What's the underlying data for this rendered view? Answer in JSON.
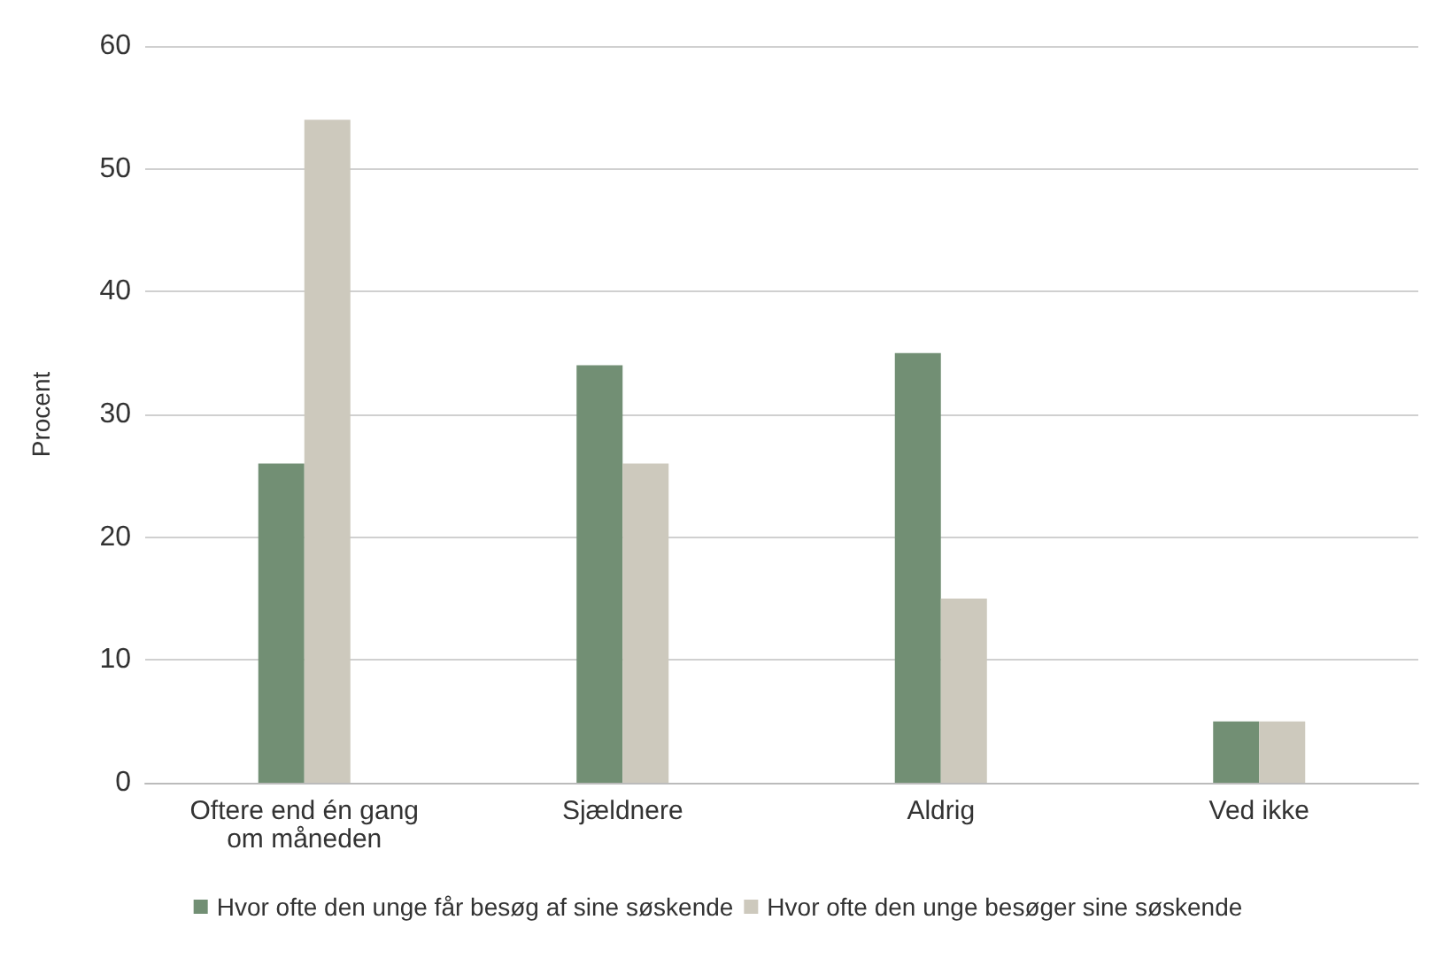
{
  "chart_data": {
    "type": "bar",
    "ylabel": "Procent",
    "categories": [
      "Oftere end én gang\nom måneden",
      "Sjældnere",
      "Aldrig",
      "Ved ikke"
    ],
    "series": [
      {
        "name": "Hvor ofte den unge får besøg af sine søskende",
        "color": "#728f74",
        "values": [
          26,
          34,
          35,
          5
        ]
      },
      {
        "name": "Hvor ofte den unge besøger sine søskende",
        "color": "#cdc9bd",
        "values": [
          54,
          26,
          15,
          5
        ]
      }
    ],
    "ylim": [
      0,
      60
    ],
    "yticks": [
      0,
      10,
      20,
      30,
      40,
      50,
      60
    ],
    "grid": "y",
    "legend": "bottom"
  }
}
